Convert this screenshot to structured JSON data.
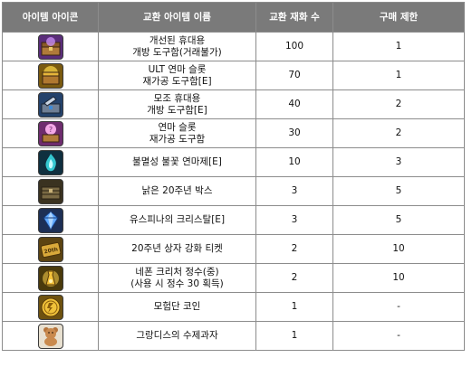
{
  "header": {
    "icon": "아이템 아이콘",
    "name": "교환 아이템 이름",
    "cost": "교환 재화 수",
    "limit": "구매 제한"
  },
  "rows": [
    {
      "icon": "purple-chest-icon",
      "bg": "#5a2d7a",
      "name_lines": [
        "개선된 휴대용",
        "개방 도구함(거래불가)"
      ],
      "cost": "100",
      "limit": "1"
    },
    {
      "icon": "golden-chest-icon",
      "bg": "#7a5a10",
      "name_lines": [
        "ULT 연마 슬롯",
        "재가공 도구함[E]"
      ],
      "cost": "70",
      "limit": "1"
    },
    {
      "icon": "blue-toolbox-icon",
      "bg": "#24426b",
      "name_lines": [
        "모조 휴대용",
        "개방 도구함[E]"
      ],
      "cost": "40",
      "limit": "2"
    },
    {
      "icon": "pink-chest-icon",
      "bg": "#6e2c6e",
      "name_lines": [
        "연마 슬롯",
        "재가공 도구함"
      ],
      "cost": "30",
      "limit": "2"
    },
    {
      "icon": "cyan-flame-icon",
      "bg": "#0f2f3f",
      "name_lines": [
        "불멸성 불꽃 연마제[E]"
      ],
      "cost": "10",
      "limit": "3"
    },
    {
      "icon": "wooden-box-icon",
      "bg": "#3a3220",
      "name_lines": [
        "낡은 20주년 박스"
      ],
      "cost": "3",
      "limit": "5"
    },
    {
      "icon": "blue-crystal-icon",
      "bg": "#1d2f55",
      "name_lines": [
        "유스피나의 크리스탈[E]"
      ],
      "cost": "3",
      "limit": "5"
    },
    {
      "icon": "gold-ticket-icon",
      "bg": "#5c4412",
      "name_lines": [
        "20주년 상자 강화 티켓"
      ],
      "cost": "2",
      "limit": "10"
    },
    {
      "icon": "golden-essence-icon",
      "bg": "#4a3a0c",
      "name_lines": [
        "네폰 크리처 정수(중)",
        "(사용 시 정수 30 획득)"
      ],
      "cost": "2",
      "limit": "10"
    },
    {
      "icon": "gold-coin-icon",
      "bg": "#6e5210",
      "name_lines": [
        "모험단 코인"
      ],
      "cost": "1",
      "limit": "-"
    },
    {
      "icon": "teddy-bear-cookie-icon",
      "bg": "#e8e0d0",
      "name_lines": [
        "그랑디스의 수제과자"
      ],
      "cost": "1",
      "limit": "-"
    }
  ],
  "icon_ticket_text": "20th"
}
